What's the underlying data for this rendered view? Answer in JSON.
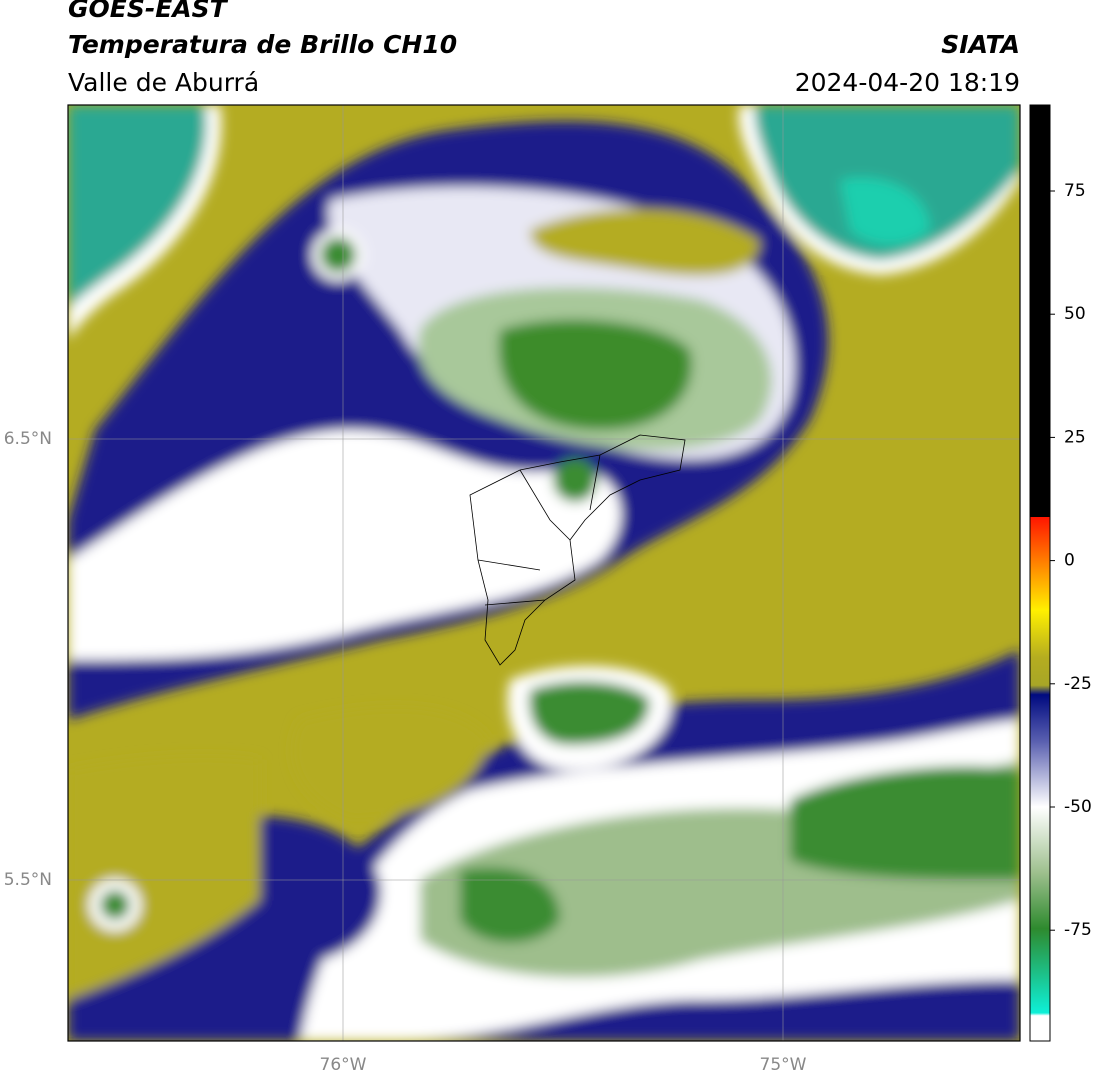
{
  "header": {
    "title": "GOES-EAST",
    "subtitle": "Temperatura de Brillo CH10",
    "region": "Valle de Aburrá",
    "source": "SIATA",
    "timestamp": "2024-04-20 18:19"
  },
  "map": {
    "lat_labels": [
      "6.5°N",
      "5.5°N"
    ],
    "lon_labels": [
      "76°W",
      "75°W"
    ]
  },
  "colorbar": {
    "ticks": [
      75,
      50,
      25,
      0,
      -25,
      -50,
      -75
    ]
  }
}
